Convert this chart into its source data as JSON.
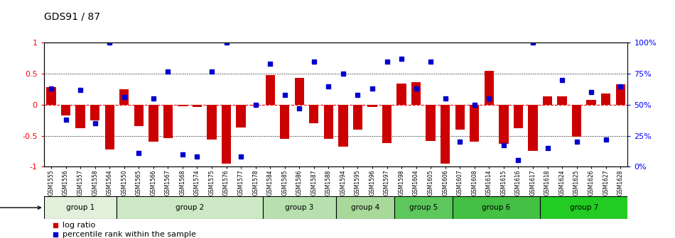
{
  "title": "GDS91 / 87",
  "samples": [
    "GSM1555",
    "GSM1556",
    "GSM1557",
    "GSM1558",
    "GSM1564",
    "GSM1550",
    "GSM1565",
    "GSM1566",
    "GSM1567",
    "GSM1568",
    "GSM1574",
    "GSM1575",
    "GSM1576",
    "GSM1577",
    "GSM1578",
    "GSM1584",
    "GSM1585",
    "GSM1586",
    "GSM1587",
    "GSM1588",
    "GSM1594",
    "GSM1595",
    "GSM1596",
    "GSM1597",
    "GSM1598",
    "GSM1604",
    "GSM1605",
    "GSM1606",
    "GSM1607",
    "GSM1608",
    "GSM1614",
    "GSM1615",
    "GSM1616",
    "GSM1617",
    "GSM1618",
    "GSM1624",
    "GSM1625",
    "GSM1626",
    "GSM1627",
    "GSM1628"
  ],
  "log_ratio": [
    0.28,
    -0.17,
    -0.38,
    -0.25,
    -0.72,
    0.25,
    -0.35,
    -0.6,
    -0.54,
    -0.02,
    -0.04,
    -0.56,
    -0.95,
    -0.37,
    -0.01,
    0.48,
    -0.55,
    0.43,
    -0.3,
    -0.55,
    -0.68,
    -0.4,
    -0.04,
    -0.62,
    0.34,
    0.37,
    -0.58,
    -0.95,
    -0.4,
    -0.6,
    0.55,
    -0.63,
    -0.38,
    -0.75,
    0.14,
    0.14,
    -0.52,
    0.08,
    0.18,
    0.33
  ],
  "percentile": [
    0.63,
    0.38,
    0.62,
    0.35,
    1.0,
    0.56,
    0.11,
    0.55,
    0.77,
    0.1,
    0.08,
    0.77,
    1.0,
    0.08,
    0.5,
    0.83,
    0.58,
    0.47,
    0.85,
    0.65,
    0.75,
    0.58,
    0.63,
    0.85,
    0.87,
    0.63,
    0.85,
    0.55,
    0.2,
    0.5,
    0.55,
    0.17,
    0.05,
    1.0,
    0.15,
    0.7,
    0.2,
    0.6,
    0.22,
    0.65
  ],
  "groups_def": [
    {
      "label": "group 1",
      "start": 0,
      "end": 4,
      "color": "#e0f0da"
    },
    {
      "label": "group 2",
      "start": 5,
      "end": 14,
      "color": "#cce8c4"
    },
    {
      "label": "group 3",
      "start": 15,
      "end": 19,
      "color": "#b8e0ae"
    },
    {
      "label": "group 4",
      "start": 20,
      "end": 23,
      "color": "#a8d89a"
    },
    {
      "label": "group 5",
      "start": 24,
      "end": 27,
      "color": "#5cc85c"
    },
    {
      "label": "group 6",
      "start": 28,
      "end": 33,
      "color": "#44c044"
    },
    {
      "label": "group 7",
      "start": 34,
      "end": 39,
      "color": "#22cc22"
    }
  ],
  "bar_color": "#cc0000",
  "dot_color": "#0000cc",
  "ylim_left": [
    -1,
    1
  ],
  "ylim_right": [
    0,
    100
  ],
  "yticks_left": [
    -1,
    -0.5,
    0,
    0.5,
    1
  ],
  "ytick_labels_left": [
    "-1",
    "-0.5",
    "0",
    "0.5",
    "1"
  ],
  "yticks_right": [
    0,
    25,
    50,
    75,
    100
  ],
  "ytick_labels_right": [
    "0%",
    "25%",
    "50%",
    "75%",
    "100%"
  ]
}
